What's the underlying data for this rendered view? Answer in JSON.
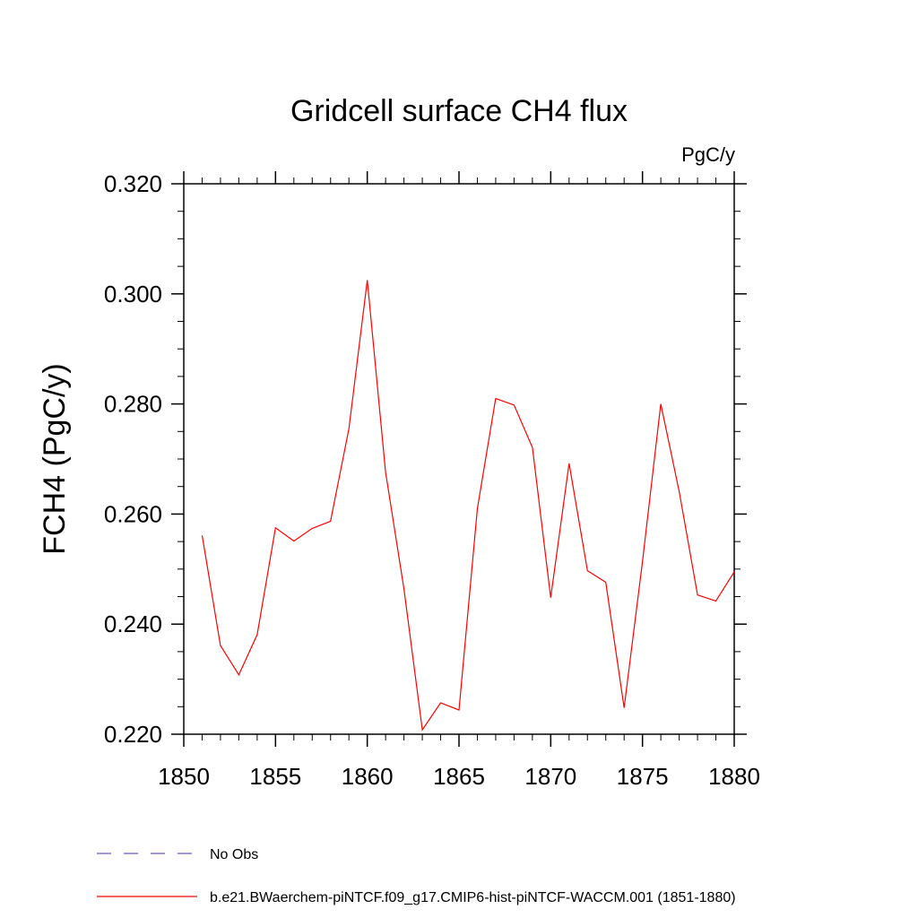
{
  "chart_data": {
    "type": "line",
    "title": "Gridcell surface CH4 flux",
    "units_label": "PgC/y",
    "xlabel": "",
    "ylabel": "FCH4  (PgC/y)",
    "xlim": [
      1850,
      1880
    ],
    "ylim": [
      0.22,
      0.32
    ],
    "x_ticks": [
      1850,
      1855,
      1860,
      1865,
      1870,
      1875,
      1880
    ],
    "x_tick_labels": [
      "1850",
      "1855",
      "1860",
      "1865",
      "1870",
      "1875",
      "1880"
    ],
    "y_ticks": [
      0.22,
      0.24,
      0.26,
      0.28,
      0.3,
      0.32
    ],
    "y_tick_labels": [
      "0.220",
      "0.240",
      "0.260",
      "0.280",
      "0.300",
      "0.320"
    ],
    "grid": false,
    "legend_position": "bottom",
    "series": [
      {
        "name": "b.e21.BWaerchem-piNTCF.f09_g17.CMIP6-hist-piNTCF-WACCM.001 (1851-1880)",
        "color": "#ff0000",
        "style": "solid",
        "x": [
          1851,
          1852,
          1853,
          1854,
          1855,
          1856,
          1857,
          1858,
          1859,
          1860,
          1861,
          1862,
          1863,
          1864,
          1865,
          1866,
          1867,
          1868,
          1869,
          1870,
          1871,
          1872,
          1873,
          1874,
          1875,
          1876,
          1877,
          1878,
          1879,
          1880
        ],
        "y": [
          0.2561,
          0.2361,
          0.2308,
          0.2381,
          0.2575,
          0.2551,
          0.2574,
          0.2587,
          0.2755,
          0.3025,
          0.2676,
          0.2464,
          0.2208,
          0.2257,
          0.2244,
          0.261,
          0.281,
          0.2798,
          0.2721,
          0.2448,
          0.2692,
          0.2497,
          0.2476,
          0.2248,
          0.2514,
          0.28,
          0.2641,
          0.2453,
          0.2442,
          0.2495
        ]
      }
    ],
    "legend": [
      {
        "label": "No Obs",
        "color": "#6a5acd",
        "style": "dashed"
      },
      {
        "label": "b.e21.BWaerchem-piNTCF.f09_g17.CMIP6-hist-piNTCF-WACCM.001 (1851-1880)",
        "color": "#ff0000",
        "style": "solid"
      }
    ]
  }
}
